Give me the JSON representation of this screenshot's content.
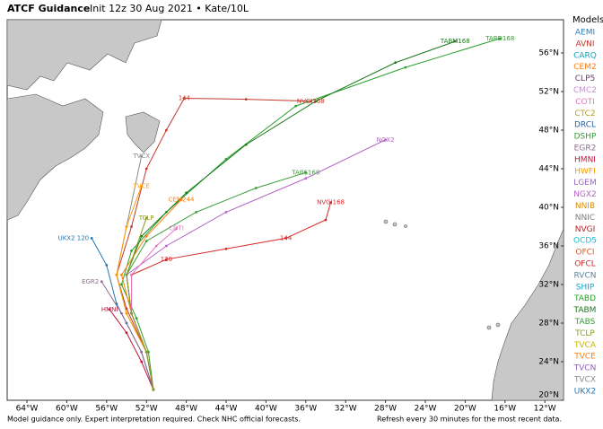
{
  "header": {
    "title": "ATCF Guidance",
    "subtitle": "Init 12z 30 Aug 2021 • Kate/10L"
  },
  "legend": {
    "title": "Models",
    "items": [
      {
        "name": "AEMI",
        "color": "#2a7fb8"
      },
      {
        "name": "AVNI",
        "color": "#c0392b"
      },
      {
        "name": "CARQ",
        "color": "#17a2b8"
      },
      {
        "name": "CEM2",
        "color": "#ff7f0e"
      },
      {
        "name": "CLP5",
        "color": "#6a3d6a"
      },
      {
        "name": "CMC2",
        "color": "#c68fd0"
      },
      {
        "name": "COTI",
        "color": "#e377c2"
      },
      {
        "name": "CTC2",
        "color": "#b5a21a"
      },
      {
        "name": "DRCL",
        "color": "#1f5fa8"
      },
      {
        "name": "DSHP",
        "color": "#2ca02c"
      },
      {
        "name": "EGR2",
        "color": "#8c6d8c"
      },
      {
        "name": "HMNI",
        "color": "#c0143c"
      },
      {
        "name": "HWFI",
        "color": "#ff9900"
      },
      {
        "name": "LGEM",
        "color": "#9467bd"
      },
      {
        "name": "NGX2",
        "color": "#b565c7"
      },
      {
        "name": "NNIB",
        "color": "#e08a00"
      },
      {
        "name": "NNIC",
        "color": "#7f7f7f"
      },
      {
        "name": "NVGI",
        "color": "#b22222"
      },
      {
        "name": "OCD5",
        "color": "#17becf"
      },
      {
        "name": "OFCI",
        "color": "#e05a2a"
      },
      {
        "name": "OFCL",
        "color": "#d62728"
      },
      {
        "name": "RVCN",
        "color": "#5f7f9f"
      },
      {
        "name": "SHIP",
        "color": "#1fa0c8"
      },
      {
        "name": "TABD",
        "color": "#2ca02c"
      },
      {
        "name": "TABM",
        "color": "#1a7a1a"
      },
      {
        "name": "TABS",
        "color": "#3a9d3a"
      },
      {
        "name": "TCLP",
        "color": "#8a9a1a"
      },
      {
        "name": "TVCA",
        "color": "#c8b400"
      },
      {
        "name": "TVCE",
        "color": "#ff7f0e"
      },
      {
        "name": "TVCN",
        "color": "#8e5fb5"
      },
      {
        "name": "TVCX",
        "color": "#8c8c8c"
      },
      {
        "name": "UKX2",
        "color": "#1f77b4"
      }
    ]
  },
  "map": {
    "lon_ticks": [
      "64°W",
      "60°W",
      "56°W",
      "52°W",
      "48°W",
      "44°W",
      "40°W",
      "36°W",
      "32°W",
      "28°W",
      "24°W",
      "20°W",
      "16°W",
      "12°W"
    ],
    "lat_ticks": [
      "56°N",
      "52°N",
      "48°N",
      "44°N",
      "40°N",
      "36°N",
      "32°N",
      "28°N",
      "24°N",
      "20°N"
    ],
    "tracks": [
      {
        "color": "#2ca02c",
        "points": [
          [
            -51.3,
            21.1
          ],
          [
            -51.8,
            25
          ],
          [
            -53,
            28.5
          ],
          [
            -54.5,
            32
          ],
          [
            -53.5,
            35.5
          ],
          [
            -50,
            39.5
          ],
          [
            -44,
            45
          ],
          [
            -37,
            50.5
          ],
          [
            -26,
            54.5
          ],
          [
            -16.5,
            57.5
          ]
        ],
        "labels": [
          {
            "point": 9,
            "text": "TABD168"
          }
        ]
      },
      {
        "color": "#1a7a1a",
        "points": [
          [
            -51.3,
            21.1
          ],
          [
            -52,
            25
          ],
          [
            -53.5,
            29
          ],
          [
            -54,
            33
          ],
          [
            -52.5,
            37
          ],
          [
            -48,
            41.5
          ],
          [
            -42,
            46.5
          ],
          [
            -35,
            51
          ],
          [
            -27,
            55
          ],
          [
            -21,
            57.2
          ]
        ],
        "labels": [
          {
            "point": 9,
            "text": "TABM168"
          }
        ]
      },
      {
        "color": "#c0392b",
        "points": [
          [
            -51.3,
            21.1
          ],
          [
            -52,
            25
          ],
          [
            -54,
            29.5
          ],
          [
            -55,
            33
          ],
          [
            -53.5,
            38
          ],
          [
            -52,
            44
          ],
          [
            -50,
            48
          ],
          [
            -48.2,
            51.3
          ],
          [
            -42,
            51.2
          ],
          [
            -35.5,
            51
          ]
        ],
        "labels": [
          {
            "point": 7,
            "text": "144"
          },
          {
            "point": 9,
            "text": "NVGI168"
          }
        ]
      },
      {
        "color": "#3a9d3a",
        "points": [
          [
            -51.3,
            21.1
          ],
          [
            -52,
            25
          ],
          [
            -53.5,
            29
          ],
          [
            -54,
            33
          ],
          [
            -52,
            36.5
          ],
          [
            -47,
            39.5
          ],
          [
            -41,
            42
          ],
          [
            -36,
            43.6
          ]
        ],
        "labels": [
          {
            "point": 7,
            "text": "TABS168"
          }
        ]
      },
      {
        "color": "#d62728",
        "points": [
          [
            -51.3,
            21.1
          ],
          [
            -52,
            25
          ],
          [
            -53.5,
            29
          ],
          [
            -53.5,
            33
          ],
          [
            -50,
            34.6
          ],
          [
            -44,
            35.7
          ],
          [
            -38,
            36.8
          ],
          [
            -34,
            38.7
          ],
          [
            -33.5,
            40.5
          ]
        ],
        "labels": [
          {
            "point": 4,
            "text": "120"
          },
          {
            "point": 6,
            "text": "144"
          },
          {
            "point": 8,
            "text": "NVGI168"
          }
        ]
      },
      {
        "color": "#b565c7",
        "points": [
          [
            -51.3,
            21.1
          ],
          [
            -52,
            25
          ],
          [
            -53.5,
            29
          ],
          [
            -54,
            33
          ],
          [
            -50,
            36
          ],
          [
            -44,
            39.5
          ],
          [
            -36,
            43
          ],
          [
            -28,
            47
          ]
        ],
        "labels": [
          {
            "point": 7,
            "text": "NGX2"
          }
        ]
      },
      {
        "color": "#ff7f0e",
        "points": [
          [
            -51.3,
            21.1
          ],
          [
            -52,
            25
          ],
          [
            -53.5,
            29
          ],
          [
            -54.5,
            33
          ],
          [
            -52,
            37
          ],
          [
            -48.5,
            40.8
          ]
        ],
        "labels": [
          {
            "point": 5,
            "text": "CEM244"
          }
        ]
      },
      {
        "color": "#1f77b4",
        "points": [
          [
            -51.3,
            21.1
          ],
          [
            -52.5,
            25
          ],
          [
            -54,
            28
          ],
          [
            -55,
            30
          ],
          [
            -56,
            34
          ],
          [
            -57.5,
            36.8
          ]
        ],
        "labels": [
          {
            "point": 5,
            "text": "UKX2 120"
          }
        ]
      },
      {
        "color": "#8c8c8c",
        "points": [
          [
            -51.3,
            21.1
          ],
          [
            -52,
            25
          ],
          [
            -54,
            29
          ],
          [
            -55,
            33
          ],
          [
            -54,
            38
          ],
          [
            -52.5,
            45.3
          ]
        ],
        "labels": [
          {
            "point": 5,
            "text": "TVCX"
          }
        ]
      },
      {
        "color": "#ff9900",
        "points": [
          [
            -51.3,
            21.1
          ],
          [
            -52,
            25
          ],
          [
            -54,
            29
          ],
          [
            -55,
            33
          ],
          [
            -54,
            38
          ],
          [
            -52.5,
            42.2
          ]
        ],
        "labels": [
          {
            "point": 5,
            "text": "TVCE"
          }
        ]
      },
      {
        "color": "#c0143c",
        "points": [
          [
            -51.3,
            21.1
          ],
          [
            -52.5,
            24
          ],
          [
            -54,
            27
          ],
          [
            -55.7,
            29.4
          ]
        ],
        "labels": [
          {
            "point": 3,
            "text": "HMNI"
          }
        ]
      },
      {
        "color": "#e377c2",
        "points": [
          [
            -51.3,
            21.1
          ],
          [
            -52,
            25
          ],
          [
            -53.5,
            29
          ],
          [
            -53.5,
            33
          ],
          [
            -51,
            36
          ],
          [
            -49,
            37.8
          ]
        ],
        "labels": [
          {
            "point": 5,
            "text": "COTI"
          }
        ]
      },
      {
        "color": "#8c6d8c",
        "points": [
          [
            -51.3,
            21.1
          ],
          [
            -52.5,
            25
          ],
          [
            -54.5,
            29
          ],
          [
            -56.5,
            32.3
          ]
        ],
        "labels": [
          {
            "point": 3,
            "text": "EGR2"
          }
        ]
      },
      {
        "color": "#8a9a1a",
        "points": [
          [
            -51.3,
            21.1
          ],
          [
            -52,
            25
          ],
          [
            -53.5,
            29
          ],
          [
            -54,
            33
          ],
          [
            -52,
            38.9
          ]
        ],
        "labels": [
          {
            "point": 4,
            "text": "TCLP"
          }
        ]
      }
    ]
  },
  "footer": {
    "left": "Model guidance only. Expert interpretation required. Check NHC official forecasts.",
    "right": "Refresh every 30 minutes for the most recent data."
  }
}
